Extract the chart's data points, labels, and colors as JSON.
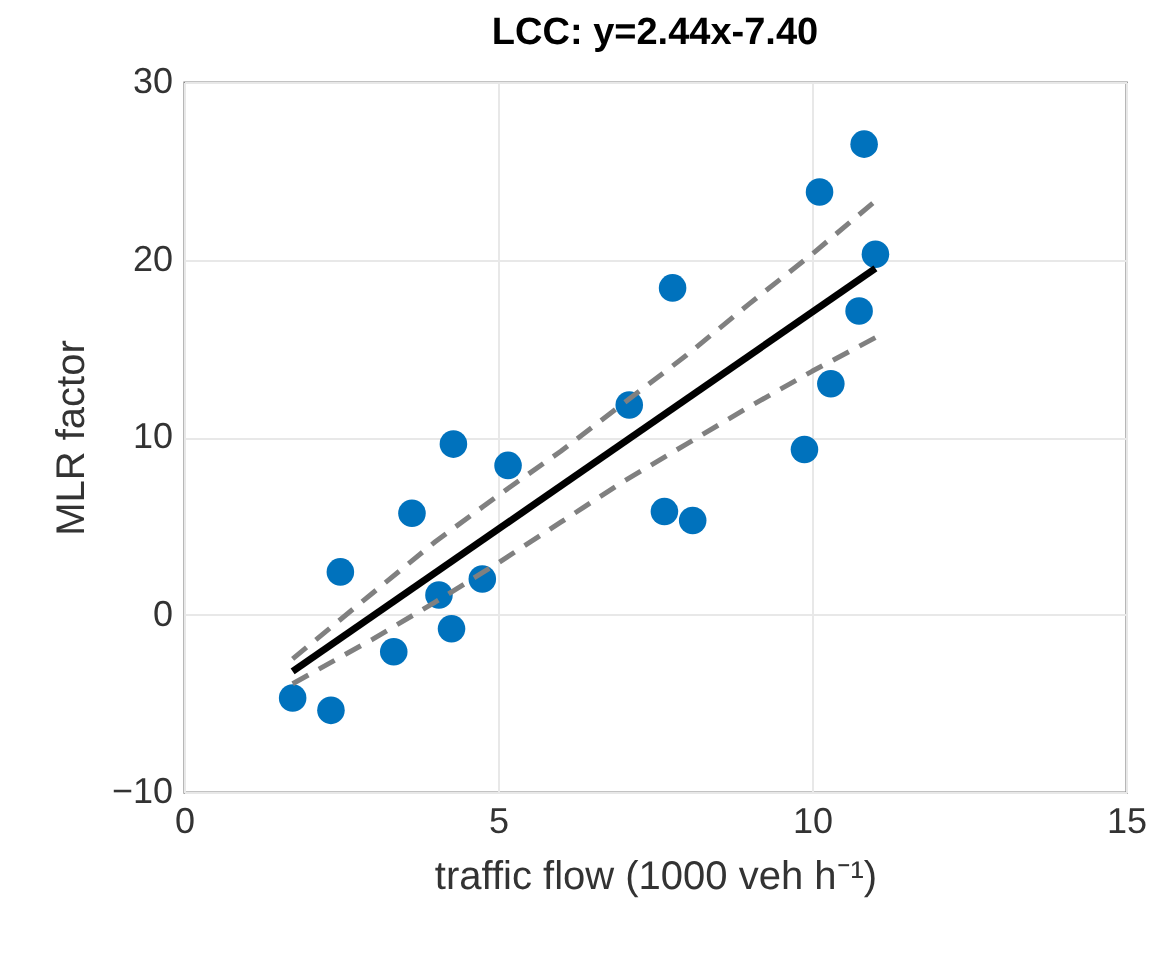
{
  "chart_data": {
    "type": "scatter",
    "title": "LCC: y=2.44x-7.40",
    "xlabel": "traffic flow (1000 veh h⁻¹)",
    "ylabel": "MLR factor",
    "xlim": [
      0,
      15
    ],
    "xticks": [
      0,
      5,
      10,
      15
    ],
    "ylim": [
      -10,
      30
    ],
    "yticks": [
      -10,
      0,
      10,
      20,
      30
    ],
    "grid": true,
    "series": [
      {
        "color": "#0072bd",
        "marker": "circle",
        "x": [
          1.73,
          2.34,
          2.49,
          3.34,
          3.63,
          4.06,
          4.26,
          4.29,
          4.75,
          5.16,
          7.09,
          7.78,
          7.65,
          8.1,
          9.88,
          10.12,
          10.3,
          10.83,
          10.75,
          11.01
        ],
        "values": [
          -4.7,
          -5.4,
          2.4,
          -2.1,
          5.7,
          1.1,
          -0.8,
          9.6,
          2.0,
          8.4,
          11.8,
          18.4,
          5.8,
          5.3,
          9.3,
          23.8,
          13.0,
          26.5,
          17.1,
          20.3
        ]
      },
      {
        "type": "line",
        "color": "#808080",
        "line_style": "dashed",
        "x": [
          1.73,
          3,
          4,
          5,
          6,
          7,
          8,
          9,
          10,
          11.01
        ],
        "values": [
          -2.5,
          1.2,
          4.1,
          6.7,
          9.2,
          11.9,
          14.6,
          17.5,
          20.3,
          23.3
        ]
      },
      {
        "type": "line",
        "color": "#808080",
        "line_style": "dashed",
        "x": [
          1.73,
          3,
          4,
          5,
          6,
          7,
          8,
          9,
          10,
          11.01
        ],
        "values": [
          -3.9,
          -1.4,
          0.7,
          2.9,
          5.2,
          7.5,
          9.6,
          11.7,
          13.7,
          15.6
        ]
      },
      {
        "type": "line",
        "color": "#000000",
        "line_style": "solid",
        "x": [
          1.73,
          11.01
        ],
        "values": [
          -3.2,
          19.5
        ]
      }
    ]
  }
}
